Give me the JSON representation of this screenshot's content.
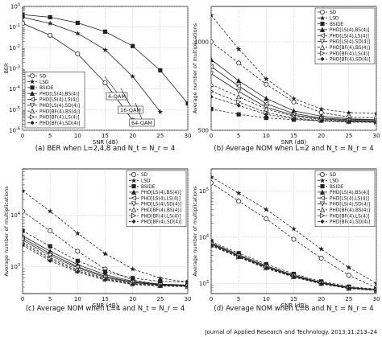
{
  "credit": "Journal of Applied Research and Technology. 2013;11:213–24",
  "chart_data": [
    {
      "type": "line",
      "caption": "(a) BER when L=2,4,8 and N_t = N_r = 4",
      "xlabel": "SNR (dB)",
      "ylabel": "BER",
      "xlim": [
        0,
        30
      ],
      "ylim": [
        1e-06,
        1
      ],
      "yscale": "log",
      "grid": true,
      "legend_position": "bottom-left",
      "legend": [
        "SD",
        "LSD",
        "BSIDE",
        "PHD[LS(4),BS(4)]",
        "PHD[LS(4),LS(4)]",
        "PHD[LS(4),SD(4)]",
        "PHD[BF(4),BS(4)]",
        "PHD[BF(4),LS(4)]",
        "PHD[BF(4),SD(4)]"
      ],
      "x": [
        0,
        5,
        10,
        15,
        20,
        25,
        30
      ],
      "annotations": [
        "4-QAM",
        "16-QAM",
        "64-QAM"
      ],
      "series": [
        {
          "group": "4-QAM",
          "values": [
            0.15,
            0.04,
            0.005,
            0.0002,
            3e-06,
            null,
            null
          ]
        },
        {
          "group": "16-QAM",
          "values": [
            0.3,
            0.15,
            0.05,
            0.008,
            0.0004,
            8e-06,
            null
          ]
        },
        {
          "group": "64-QAM",
          "values": [
            0.4,
            0.3,
            0.16,
            0.06,
            0.012,
            0.0008,
            2e-05
          ]
        }
      ]
    },
    {
      "type": "line",
      "caption": "(b) Average NOM when L=2 and N_t = N_r = 4",
      "xlabel": "SNR (dB)",
      "ylabel": "Average number of multiplications",
      "xlim": [
        0,
        30
      ],
      "ylim": [
        500,
        1200
      ],
      "yscale": "linear",
      "yticks": [
        500,
        1000
      ],
      "grid": true,
      "legend_position": "top-right",
      "legend": [
        "SD",
        "LSD",
        "BSIDE",
        "PHD[LS(4),BS(4)]",
        "PHD[LS(4),LS(4)]",
        "PHD[LS(4),SD(4)]",
        "PHD[BF(4),BS(4)]",
        "PHD[BF(4),LS(4)]",
        "PHD[BF(4),SD(4)]"
      ],
      "x": [
        0,
        5,
        10,
        15,
        20,
        25,
        30
      ],
      "series": [
        {
          "name": "SD",
          "values": [
            1000,
            880,
            760,
            660,
            600,
            575,
            570
          ]
        },
        {
          "name": "LSD",
          "values": [
            1150,
            960,
            790,
            680,
            620,
            600,
            595
          ]
        },
        {
          "name": "BSIDE",
          "values": [
            620,
            590,
            570,
            560,
            555,
            550,
            550
          ]
        },
        {
          "name": "PHD[LS(4),BS(4)]",
          "values": [
            900,
            780,
            680,
            610,
            580,
            565,
            560
          ]
        },
        {
          "name": "PHD[LS(4),LS(4)]",
          "values": [
            860,
            750,
            650,
            595,
            570,
            560,
            558
          ]
        },
        {
          "name": "PHD[LS(4),SD(4)]",
          "values": [
            820,
            720,
            630,
            585,
            565,
            555,
            552
          ]
        },
        {
          "name": "PHD[BF(4),BS(4)]",
          "values": [
            760,
            690,
            620,
            580,
            560,
            552,
            550
          ]
        },
        {
          "name": "PHD[BF(4),LS(4)]",
          "values": [
            720,
            660,
            600,
            570,
            555,
            548,
            546
          ]
        },
        {
          "name": "PHD[BF(4),SD(4)]",
          "values": [
            690,
            640,
            590,
            565,
            552,
            546,
            545
          ]
        }
      ]
    },
    {
      "type": "line",
      "caption": "(c) Average NOM when L=4 and N_t = N_r = 4",
      "xlabel": "SNR (dB)",
      "ylabel": "Average number of multiplications",
      "xlim": [
        0,
        30
      ],
      "ylim": [
        300,
        80000
      ],
      "yscale": "log",
      "grid": true,
      "legend_position": "top-right",
      "legend": [
        "SD",
        "LSD",
        "BSIDE",
        "PHD[LS(4),BS(4)]",
        "PHD[LS(4),LS(4)]",
        "PHD[LS(4),SD(4)]",
        "PHD[BF(4),BS(4)]",
        "PHD[BF(4),LS(4)]",
        "PHD[BF(4),SD(4)]"
      ],
      "x": [
        0,
        5,
        10,
        15,
        20,
        25,
        30
      ],
      "series": [
        {
          "name": "SD",
          "values": [
            12000,
            5000,
            2000,
            900,
            550,
            450,
            420
          ]
        },
        {
          "name": "LSD",
          "values": [
            30000,
            12000,
            4500,
            1800,
            900,
            600,
            500
          ]
        },
        {
          "name": "BSIDE",
          "values": [
            5000,
            2500,
            1300,
            800,
            600,
            520,
            500
          ]
        },
        {
          "name": "PHD[LS(4),BS(4)]",
          "values": [
            4000,
            2000,
            1100,
            700,
            520,
            460,
            440
          ]
        },
        {
          "name": "PHD[LS(4),LS(4)]",
          "values": [
            3600,
            1800,
            1000,
            650,
            500,
            450,
            430
          ]
        },
        {
          "name": "PHD[LS(4),SD(4)]",
          "values": [
            3300,
            1650,
            950,
            620,
            490,
            440,
            425
          ]
        },
        {
          "name": "PHD[BF(4),BS(4)]",
          "values": [
            3000,
            1500,
            880,
            590,
            470,
            430,
            420
          ]
        },
        {
          "name": "PHD[BF(4),LS(4)]",
          "values": [
            2800,
            1400,
            830,
            570,
            460,
            425,
            415
          ]
        },
        {
          "name": "PHD[BF(4),SD(4)]",
          "values": [
            2600,
            1300,
            790,
            550,
            450,
            420,
            410
          ]
        }
      ]
    },
    {
      "type": "line",
      "caption": "(d) Average NOM when L=8 and N_t = N_r = 4",
      "xlabel": "SNR (dB)",
      "ylabel": "Average number of multiplications",
      "xlim": [
        0,
        30
      ],
      "ylim": [
        600,
        300000
      ],
      "yscale": "log",
      "grid": true,
      "legend_position": "top-right",
      "legend": [
        "SD",
        "LSD",
        "BSIDE",
        "PHD[LS(4),BS(4)]",
        "PHD[LS(4),LS(4)]",
        "PHD[LS(4),SD(4)]",
        "PHD[BF(4),BS(4)]",
        "PHD[BF(4),LS(4)]",
        "PHD[BF(4),SD(4)]"
      ],
      "x": [
        0,
        5,
        10,
        15,
        20,
        25,
        30
      ],
      "series": [
        {
          "name": "SD",
          "values": [
            150000,
            60000,
            25000,
            9000,
            3500,
            1500,
            800
          ]
        },
        {
          "name": "LSD",
          "values": [
            200000,
            90000,
            40000,
            15000,
            5500,
            2200,
            1000
          ]
        },
        {
          "name": "BSIDE",
          "values": [
            8000,
            4500,
            2600,
            1600,
            1100,
            850,
            750
          ]
        },
        {
          "name": "PHD[LS(4),BS(4)]",
          "values": [
            7500,
            4200,
            2400,
            1500,
            1050,
            820,
            730
          ]
        },
        {
          "name": "PHD[LS(4),LS(4)]",
          "values": [
            7200,
            4000,
            2300,
            1450,
            1020,
            800,
            720
          ]
        },
        {
          "name": "PHD[LS(4),SD(4)]",
          "values": [
            7000,
            3900,
            2250,
            1420,
            1000,
            790,
            715
          ]
        },
        {
          "name": "PHD[BF(4),BS(4)]",
          "values": [
            6800,
            3800,
            2200,
            1400,
            990,
            780,
            710
          ]
        },
        {
          "name": "PHD[BF(4),LS(4)]",
          "values": [
            6600,
            3700,
            2150,
            1380,
            980,
            775,
            705
          ]
        },
        {
          "name": "PHD[BF(4),SD(4)]",
          "values": [
            6500,
            3650,
            2100,
            1360,
            970,
            770,
            700
          ]
        }
      ]
    }
  ]
}
